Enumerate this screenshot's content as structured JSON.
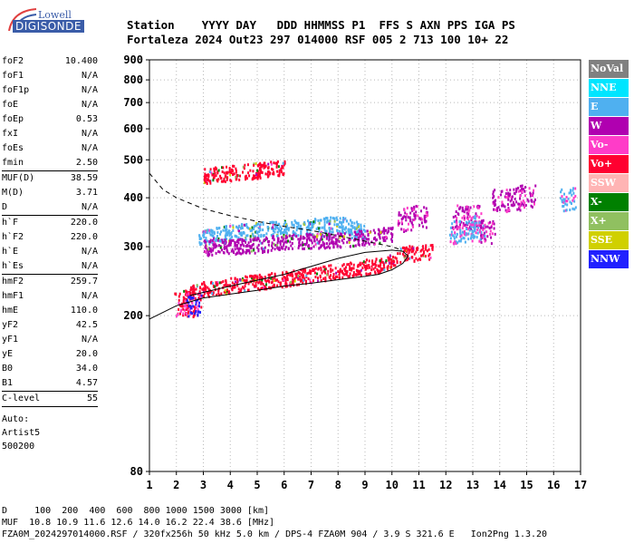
{
  "logo": {
    "brand": "Lowell",
    "product": "DIGISONDE"
  },
  "header": {
    "line1": "Station    YYYY DAY   DDD HHMMSS P1  FFS S AXN PPS IGA PS",
    "line2": "Fortaleza 2024 Out23 297 014000 RSF 005 2 713 100 10+ 22"
  },
  "params": [
    {
      "k": "foF2",
      "v": "10.400",
      "sep_after": false
    },
    {
      "k": "foF1",
      "v": "N/A",
      "sep_after": false
    },
    {
      "k": "foF1p",
      "v": "N/A",
      "sep_after": false
    },
    {
      "k": "foE",
      "v": "N/A",
      "sep_after": false
    },
    {
      "k": "foEp",
      "v": "0.53",
      "sep_after": false
    },
    {
      "k": "fxI",
      "v": "N/A",
      "sep_after": false
    },
    {
      "k": "foEs",
      "v": "N/A",
      "sep_after": false
    },
    {
      "k": "fmin",
      "v": "2.50",
      "sep_after": true
    },
    {
      "k": "MUF(D)",
      "v": "38.59",
      "sep_after": false
    },
    {
      "k": "M(D)",
      "v": "3.71",
      "sep_after": false
    },
    {
      "k": "D",
      "v": "N/A",
      "sep_after": true
    },
    {
      "k": "h`F",
      "v": "220.0",
      "sep_after": false
    },
    {
      "k": "h`F2",
      "v": "220.0",
      "sep_after": false
    },
    {
      "k": "h`E",
      "v": "N/A",
      "sep_after": false
    },
    {
      "k": "h`Es",
      "v": "N/A",
      "sep_after": true
    },
    {
      "k": "hmF2",
      "v": "259.7",
      "sep_after": false
    },
    {
      "k": "hmF1",
      "v": "N/A",
      "sep_after": false
    },
    {
      "k": "hmE",
      "v": "110.0",
      "sep_after": false
    },
    {
      "k": "yF2",
      "v": "42.5",
      "sep_after": false
    },
    {
      "k": "yF1",
      "v": "N/A",
      "sep_after": false
    },
    {
      "k": "yE",
      "v": "20.0",
      "sep_after": false
    },
    {
      "k": "B0",
      "v": "34.0",
      "sep_after": false
    },
    {
      "k": "B1",
      "v": "4.57",
      "sep_after": true
    },
    {
      "k": "C-level",
      "v": "55",
      "sep_after": true
    }
  ],
  "auto": {
    "label": "Auto:",
    "artist": "Artist5",
    "version": "500200"
  },
  "footer": {
    "line1": "D     100  200  400  600  800 1000 1500 3000 [km]",
    "line2": "MUF  10.8 10.9 11.6 12.6 14.0 16.2 22.4 38.6 [MHz]",
    "line3": "FZA0M_2024297014000.RSF / 320fx256h 50 kHz 5.0 km / DPS-4 FZA0M 904 / 3.9 S 321.6 E   Ion2Png 1.3.20"
  },
  "legend": [
    {
      "label": "NoVal",
      "color": "#808080"
    },
    {
      "label": "NNE",
      "color": "#00e5ff"
    },
    {
      "label": "E",
      "color": "#4fb0f0"
    },
    {
      "label": "W",
      "color": "#b000b0"
    },
    {
      "label": "Vo-",
      "color": "#ff3cc8"
    },
    {
      "label": "Vo+",
      "color": "#ff0030"
    },
    {
      "label": "SSW",
      "color": "#ffb4b4"
    },
    {
      "label": "X-",
      "color": "#008000"
    },
    {
      "label": "X+",
      "color": "#90c060"
    },
    {
      "label": "SSE",
      "color": "#d0d000"
    },
    {
      "label": "NNW",
      "color": "#2020ff"
    }
  ],
  "chart_data": {
    "type": "scatter",
    "title": "",
    "xlabel": "",
    "ylabel": "",
    "xlim": [
      1,
      17
    ],
    "ylim": [
      80,
      900
    ],
    "x_ticks": [
      1,
      2,
      3,
      4,
      5,
      6,
      7,
      8,
      9,
      10,
      11,
      12,
      13,
      14,
      15,
      16,
      17
    ],
    "y_ticks": [
      80,
      200,
      300,
      400,
      500,
      600,
      700,
      800,
      900
    ],
    "y_scale": "log",
    "grid": true,
    "legend_position": "right",
    "traces": [
      {
        "series": "Vo+",
        "kind": "band",
        "points": [
          [
            2.2,
            225
          ],
          [
            3,
            235
          ],
          [
            4,
            240
          ],
          [
            5,
            245
          ],
          [
            6,
            250
          ],
          [
            7,
            255
          ],
          [
            8,
            262
          ],
          [
            9,
            268
          ],
          [
            9.8,
            272
          ],
          [
            10.4,
            290
          ],
          [
            11,
            290
          ],
          [
            11.5,
            295
          ]
        ]
      },
      {
        "series": "E",
        "kind": "band",
        "points": [
          [
            2.8,
            318
          ],
          [
            4,
            328
          ],
          [
            5,
            334
          ],
          [
            6,
            336
          ],
          [
            7,
            340
          ],
          [
            8,
            345
          ],
          [
            9,
            330
          ]
        ]
      },
      {
        "series": "W",
        "kind": "band",
        "points": [
          [
            3,
            300
          ],
          [
            4,
            302
          ],
          [
            5,
            305
          ],
          [
            6,
            310
          ],
          [
            7,
            312
          ],
          [
            8,
            315
          ],
          [
            9,
            318
          ],
          [
            10,
            325
          ]
        ]
      },
      {
        "series": "Vo+",
        "kind": "band",
        "points": [
          [
            3,
            458
          ],
          [
            4,
            465
          ],
          [
            5,
            472
          ],
          [
            6,
            482
          ]
        ]
      },
      {
        "series": "W",
        "kind": "cluster",
        "points": [
          [
            10.5,
            355
          ],
          [
            11,
            360
          ],
          [
            12.5,
            360
          ],
          [
            13,
            360
          ],
          [
            13.5,
            330
          ],
          [
            14,
            395
          ],
          [
            14.5,
            400
          ],
          [
            15,
            405
          ]
        ]
      },
      {
        "series": "E",
        "kind": "cluster",
        "points": [
          [
            12.4,
            330
          ],
          [
            12.8,
            340
          ],
          [
            13.2,
            335
          ],
          [
            16.5,
            400
          ]
        ]
      },
      {
        "series": "Vo+",
        "kind": "cluster",
        "points": [
          [
            2.2,
            215
          ],
          [
            2.6,
            215
          ]
        ]
      },
      {
        "series": "NNW",
        "kind": "cluster",
        "points": [
          [
            2.6,
            215
          ]
        ]
      }
    ],
    "curves": [
      {
        "style": "solid",
        "points": [
          [
            1,
            196
          ],
          [
            2,
            212
          ],
          [
            3,
            222
          ],
          [
            4,
            227
          ],
          [
            5,
            232
          ],
          [
            6,
            238
          ],
          [
            7,
            242
          ],
          [
            8,
            247
          ],
          [
            9,
            252
          ],
          [
            9.5,
            255
          ],
          [
            10,
            262
          ],
          [
            10.4,
            272
          ],
          [
            10.6,
            284
          ],
          [
            10.4,
            292
          ],
          [
            10,
            294
          ],
          [
            9,
            290
          ],
          [
            8,
            280
          ],
          [
            6,
            255
          ],
          [
            4,
            238
          ],
          [
            2.5,
            225
          ]
        ]
      },
      {
        "style": "dashed",
        "points": [
          [
            1,
            462
          ],
          [
            1.5,
            420
          ],
          [
            2,
            400
          ],
          [
            3,
            375
          ],
          [
            4,
            360
          ],
          [
            5,
            348
          ],
          [
            6,
            338
          ],
          [
            7,
            330
          ],
          [
            8,
            320
          ],
          [
            9,
            310
          ],
          [
            10,
            300
          ],
          [
            10.3,
            295
          ]
        ]
      }
    ]
  }
}
